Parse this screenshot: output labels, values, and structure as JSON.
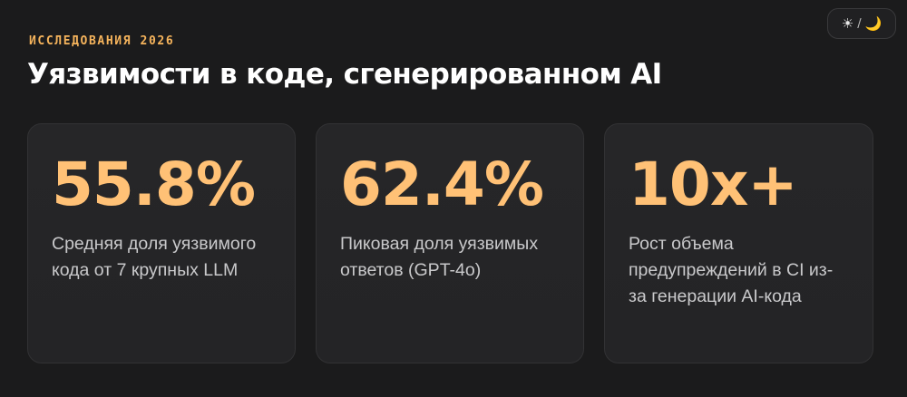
{
  "header": {
    "kicker": "ИССЛЕДОВАНИЯ 2026",
    "title": "Уязвимости в коде, сгенерированном AI"
  },
  "theme_toggle": {
    "sun": "☀",
    "slash": "/",
    "moon": "🌙",
    "icons": [
      "sun-icon",
      "moon-icon"
    ]
  },
  "cards": [
    {
      "stat": "55.8%",
      "description": "Средняя доля уязвимого кода от 7 крупных LLM"
    },
    {
      "stat": "62.4%",
      "description": "Пиковая доля уязвимых ответов (GPT-4o)"
    },
    {
      "stat": "10x+",
      "description": "Рост объема предупреждений в CI из-за генерации AI-кода"
    }
  ],
  "colors": {
    "background": "#1b1b1c",
    "accent": "#ffc176",
    "kicker": "#f6b45c",
    "card": "#262628",
    "text_secondary": "#c9c9cb"
  }
}
